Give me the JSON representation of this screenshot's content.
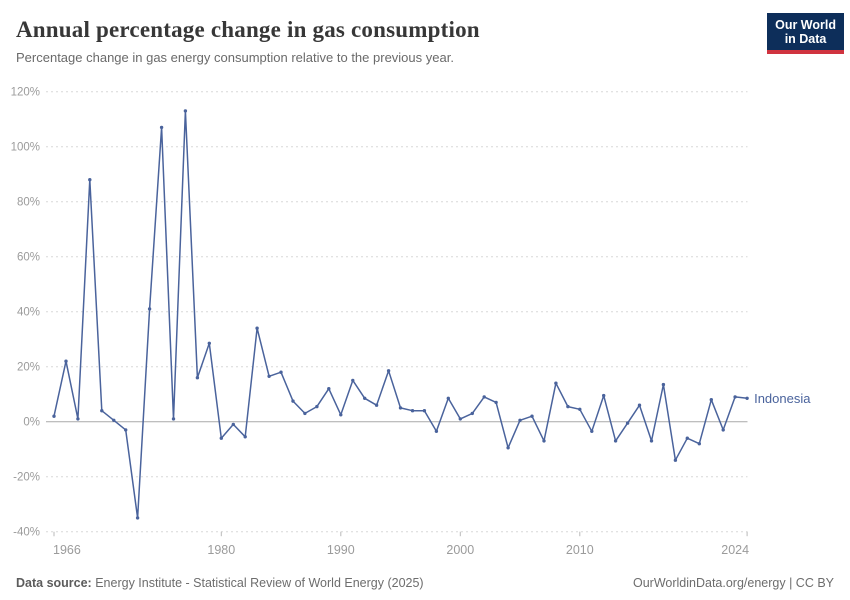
{
  "header": {
    "title": "Annual percentage change in gas consumption",
    "subtitle": "Percentage change in gas energy consumption relative to the previous year.",
    "logo_line1": "Our World",
    "logo_line2": "in Data"
  },
  "chart_data": {
    "type": "line",
    "title": "Annual percentage change in gas consumption",
    "xlabel": "",
    "ylabel": "",
    "x": [
      1966,
      1967,
      1968,
      1969,
      1970,
      1971,
      1972,
      1973,
      1974,
      1975,
      1976,
      1977,
      1978,
      1979,
      1980,
      1981,
      1982,
      1983,
      1984,
      1985,
      1986,
      1987,
      1988,
      1989,
      1990,
      1991,
      1992,
      1993,
      1994,
      1995,
      1996,
      1997,
      1998,
      1999,
      2000,
      2001,
      2002,
      2003,
      2004,
      2005,
      2006,
      2007,
      2008,
      2009,
      2010,
      2011,
      2012,
      2013,
      2014,
      2015,
      2016,
      2017,
      2018,
      2019,
      2020,
      2021,
      2022,
      2023,
      2024
    ],
    "series": [
      {
        "name": "Indonesia",
        "color": "#4a639c",
        "values": [
          2,
          22,
          1,
          88,
          4,
          0.5,
          -3,
          -35,
          41,
          107,
          1,
          113,
          16,
          28.5,
          -6,
          -1,
          -5.5,
          34,
          16.5,
          18,
          7.5,
          3,
          5.5,
          12,
          2.5,
          15,
          8.5,
          6,
          18.5,
          5,
          4,
          4,
          -3.5,
          8.5,
          1,
          3,
          9,
          7,
          -9.5,
          0.5,
          2,
          -7,
          14,
          5.5,
          4.5,
          -3.5,
          9.5,
          -7,
          -0.5,
          6,
          -7,
          13.5,
          -14,
          -6,
          -8,
          8,
          -3,
          9,
          8.5
        ]
      }
    ],
    "x_ticks": [
      1966,
      1980,
      1990,
      2000,
      2010,
      2024
    ],
    "y_ticks": [
      -40,
      -20,
      0,
      20,
      40,
      60,
      80,
      100,
      120
    ],
    "y_tick_suffix": "%",
    "ylim": [
      -40,
      120
    ],
    "xlim": [
      1965.3,
      2025
    ],
    "grid": true,
    "legend_position": "end-of-line"
  },
  "colors": {
    "accent": "#4a639c",
    "grid": "#d8d8d8",
    "zero_line": "#a9a9a9",
    "tick_text": "#9b9b9b",
    "logo_bg": "#0d2e5a",
    "logo_bar": "#d0333f"
  },
  "footer": {
    "source_label": "Data source:",
    "source_text": " Energy Institute - Statistical Review of World Energy (2025)",
    "credit": "OurWorldinData.org/energy | CC BY"
  }
}
